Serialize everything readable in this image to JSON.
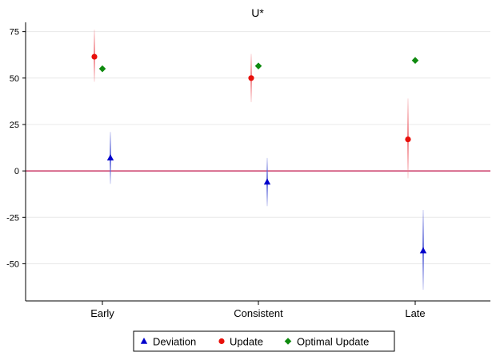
{
  "chart_data": {
    "type": "scatter",
    "title": "U*",
    "xlabel": "",
    "ylabel": "",
    "categories": [
      "Early",
      "Consistent",
      "Late"
    ],
    "ylim": [
      -70,
      80
    ],
    "yticks": [
      -50,
      -25,
      0,
      25,
      50,
      75
    ],
    "yticklabels": [
      "-50",
      "-25",
      "0",
      "25",
      "50",
      "75"
    ],
    "grid": true,
    "reference_line": 0,
    "legend_position": "bottom",
    "series": [
      {
        "name": "Deviation",
        "marker": "triangle",
        "color": "#0000cc",
        "ci_color": "#5a64d8",
        "values": [
          7,
          -6,
          -43
        ],
        "ci_low": [
          -7,
          -19,
          -64
        ],
        "ci_high": [
          21,
          7,
          -21
        ]
      },
      {
        "name": "Update",
        "marker": "circle",
        "color": "#e8100b",
        "ci_color": "#f07a80",
        "values": [
          61.5,
          50,
          17
        ],
        "ci_low": [
          48,
          37,
          -4
        ],
        "ci_high": [
          76,
          63,
          39
        ]
      },
      {
        "name": "Optimal Update",
        "marker": "diamond",
        "color": "#0f8a0f",
        "values": [
          55,
          56.5,
          59.5
        ]
      }
    ],
    "colors": {
      "reference_line": "#c0144a",
      "grid": "#e8e8e8",
      "axis": "#000000"
    }
  }
}
